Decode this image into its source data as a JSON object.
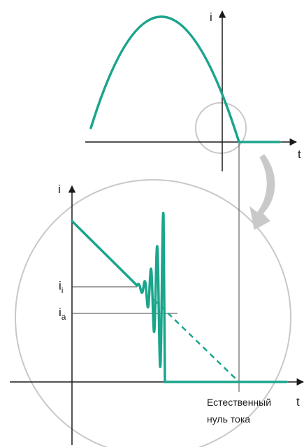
{
  "colors": {
    "curve": "#1aa58c",
    "axis": "#1a1a1a",
    "thin_line": "#444444",
    "magnifier": "#c8c8c8",
    "arrow": "#c9c9c9"
  },
  "top_plot": {
    "y_axis_label": "i",
    "x_axis_label": "t"
  },
  "bottom_plot": {
    "y_axis_label": "i",
    "x_axis_label": "t",
    "level_labels": [
      {
        "base": "i",
        "sub": "i"
      },
      {
        "base": "i",
        "sub": "a"
      }
    ],
    "caption_line1": "Естественный",
    "caption_line2": "нуль тока"
  }
}
